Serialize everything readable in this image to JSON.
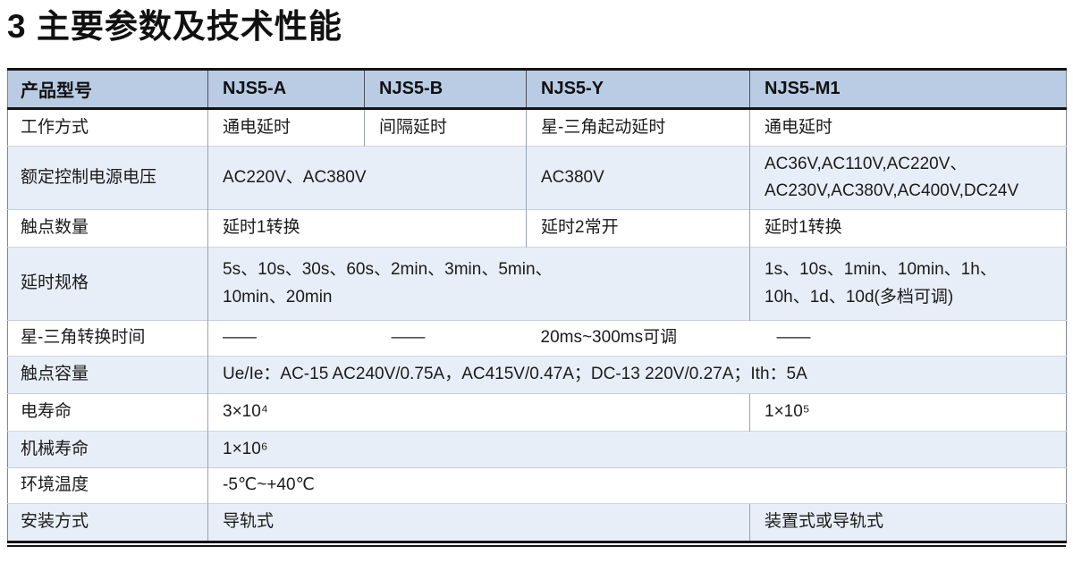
{
  "page_title": "3 主要参数及技术性能",
  "colors": {
    "header_bg": "#b9cce4",
    "stripe_bg": "#e8eef7",
    "border_dark": "#141414"
  },
  "table": {
    "header": {
      "product_model": "产品型号",
      "njs5_a": "NJS5-A",
      "njs5_b": "NJS5-B",
      "njs5_y": "NJS5-Y",
      "njs5_m1": "NJS5-M1"
    },
    "rows": {
      "work_mode": {
        "label": "工作方式",
        "a": "通电延时",
        "b": "间隔延时",
        "y": "星-三角起动延时",
        "m1": "通电延时"
      },
      "rated_voltage": {
        "label": "额定控制电源电压",
        "ab": "AC220V、AC380V",
        "y": "AC380V",
        "m1": "AC36V,AC110V,AC220V、\nAC230V,AC380V,AC400V,DC24V"
      },
      "contact_count": {
        "label": "触点数量",
        "ab": "延时1转换",
        "y": "延时2常开",
        "m1": "延时1转换"
      },
      "delay_spec": {
        "label": "延时规格",
        "aby": "5s、10s、30s、60s、2min、3min、5min、\n10min、20min",
        "m1": "1s、10s、1min、10min、1h、\n10h、1d、10d(多档可调)"
      },
      "star_delta_time": {
        "label": "星-三角转换时间",
        "a": "——",
        "b": "——",
        "y": "20ms~300ms可调",
        "m1": "——"
      },
      "contact_capacity": {
        "label": "触点容量",
        "all": "Ue/Ie：AC-15 AC240V/0.75A，AC415V/0.47A；DC-13 220V/0.27A；Ith：5A"
      },
      "electrical_life": {
        "label": "电寿命",
        "aby": "3×10⁴",
        "m1": "1×10⁵"
      },
      "mechanical_life": {
        "label": "机械寿命",
        "all": "1×10⁶"
      },
      "ambient_temp": {
        "label": "环境温度",
        "all": "-5℃~+40℃"
      },
      "mounting": {
        "label": "安装方式",
        "aby": "导轨式",
        "m1": "装置式或导轨式"
      }
    }
  }
}
